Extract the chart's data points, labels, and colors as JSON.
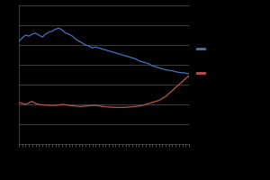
{
  "blue_y": [
    5.2,
    5.35,
    5.5,
    5.45,
    5.55,
    5.6,
    5.5,
    5.4,
    5.55,
    5.65,
    5.7,
    5.8,
    5.85,
    5.75,
    5.6,
    5.55,
    5.45,
    5.3,
    5.2,
    5.1,
    5.0,
    4.95,
    4.85,
    4.9,
    4.85,
    4.8,
    4.75,
    4.7,
    4.65,
    4.6,
    4.55,
    4.5,
    4.45,
    4.4,
    4.35,
    4.3,
    4.2,
    4.15,
    4.1,
    4.05,
    3.95,
    3.9,
    3.85,
    3.8,
    3.75,
    3.72,
    3.7,
    3.65,
    3.62,
    3.6,
    3.58,
    3.55
  ],
  "red_y": [
    2.1,
    2.05,
    2.0,
    2.08,
    2.15,
    2.05,
    2.0,
    1.98,
    1.96,
    1.95,
    1.95,
    1.95,
    1.97,
    2.0,
    1.98,
    1.95,
    1.93,
    1.92,
    1.9,
    1.9,
    1.92,
    1.93,
    1.95,
    1.95,
    1.93,
    1.9,
    1.88,
    1.87,
    1.86,
    1.85,
    1.85,
    1.85,
    1.85,
    1.87,
    1.88,
    1.9,
    1.92,
    1.95,
    2.0,
    2.05,
    2.1,
    2.15,
    2.2,
    2.3,
    2.4,
    2.55,
    2.7,
    2.85,
    3.0,
    3.15,
    3.3,
    3.45
  ],
  "blue_color": "#4472C4",
  "red_color": "#C0504D",
  "background_color": "#000000",
  "plot_bg_color": "#000000",
  "grid_color": "#555555",
  "ylim": [
    0,
    7
  ],
  "n_points": 52,
  "yticks": [
    0,
    1,
    2,
    3,
    4,
    5,
    6,
    7
  ],
  "legend_blue_label": "",
  "legend_red_label": ""
}
